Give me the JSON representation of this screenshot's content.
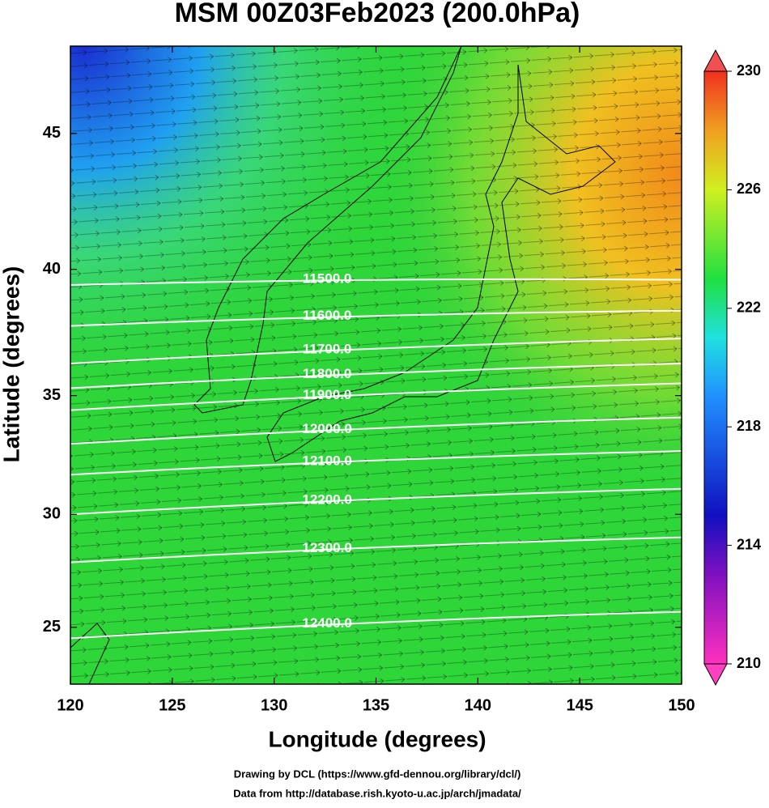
{
  "chart_data": {
    "type": "contour-map",
    "title": "MSM 00Z03Feb2023 (200.0hPa)",
    "x_label": "Longitude (degrees)",
    "y_label": "Latitude  (degrees)",
    "xlim": [
      120,
      150
    ],
    "ylim": [
      22.4,
      48
    ],
    "xticks": [
      120,
      125,
      130,
      135,
      140,
      145,
      150
    ],
    "yticks": [
      25,
      30,
      35,
      40,
      45
    ],
    "colorbar": {
      "lim": [
        210,
        230
      ],
      "ticks": [
        210,
        214,
        218,
        222,
        226,
        230
      ]
    },
    "contours": [
      {
        "value": 11500,
        "label": "11500.0",
        "lat": [
          39.4,
          39.6
        ]
      },
      {
        "value": 11600,
        "label": "11600.0",
        "lat": [
          37.8,
          38.4
        ]
      },
      {
        "value": 11700,
        "label": "11700.0",
        "lat": [
          36.3,
          37.3
        ]
      },
      {
        "value": 11800,
        "label": "11800.0",
        "lat": [
          35.3,
          36.3
        ]
      },
      {
        "value": 11900,
        "label": "11900.0",
        "lat": [
          34.4,
          35.5
        ]
      },
      {
        "value": 12000,
        "label": "12000.0",
        "lat": [
          33.0,
          34.1
        ]
      },
      {
        "value": 12100,
        "label": "12100.0",
        "lat": [
          31.7,
          32.7
        ]
      },
      {
        "value": 12200,
        "label": "12200.0",
        "lat": [
          30.0,
          31.1
        ]
      },
      {
        "value": 12300,
        "label": "12300.0",
        "lat": [
          27.9,
          29.0
        ]
      },
      {
        "value": 12400,
        "label": "12400.0",
        "lat": [
          24.5,
          25.7
        ]
      }
    ],
    "credits": [
      "Drawing by DCL (https://www.gfd-dennou.org/library/dcl/)",
      "Data from http://database.rish.kyoto-u.ac.jp/arch/jmadata/"
    ]
  }
}
